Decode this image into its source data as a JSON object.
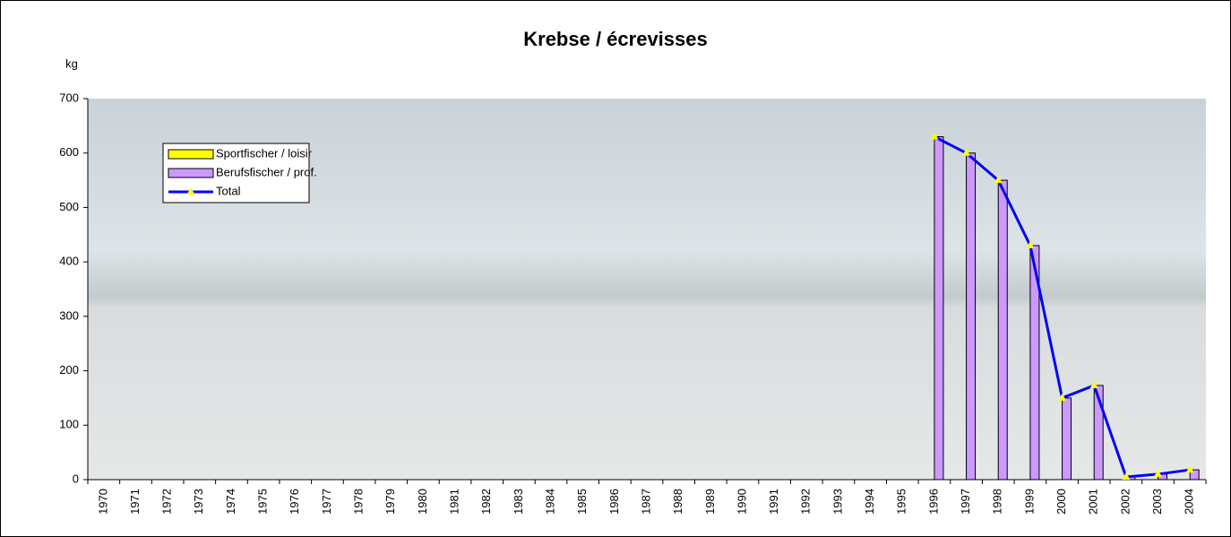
{
  "chart_data": {
    "type": "bar",
    "title": "Krebse / écrevisses",
    "y_label": "kg",
    "categories": [
      "1970",
      "1971",
      "1972",
      "1973",
      "1974",
      "1975",
      "1976",
      "1977",
      "1978",
      "1979",
      "1980",
      "1981",
      "1982",
      "1983",
      "1984",
      "1985",
      "1986",
      "1987",
      "1988",
      "1989",
      "1990",
      "1991",
      "1992",
      "1993",
      "1994",
      "1995",
      "1996",
      "1997",
      "1998",
      "1999",
      "2000",
      "2001",
      "2002",
      "2003",
      "2004"
    ],
    "series": [
      {
        "name": "Sportfischer / loisir",
        "type": "bar",
        "color": "#ffff00",
        "values": [
          null,
          null,
          null,
          null,
          null,
          null,
          null,
          null,
          null,
          null,
          null,
          null,
          null,
          null,
          null,
          null,
          null,
          null,
          null,
          null,
          null,
          null,
          null,
          null,
          null,
          null,
          0,
          0,
          0,
          0,
          0,
          0,
          0,
          0,
          0
        ]
      },
      {
        "name": "Berufsfischer / prof.",
        "type": "bar",
        "color": "#cc99ff",
        "values": [
          null,
          null,
          null,
          null,
          null,
          null,
          null,
          null,
          null,
          null,
          null,
          null,
          null,
          null,
          null,
          null,
          null,
          null,
          null,
          null,
          null,
          null,
          null,
          null,
          null,
          null,
          630,
          600,
          550,
          430,
          150,
          173,
          5,
          10,
          18
        ]
      },
      {
        "name": "Total",
        "type": "line",
        "color": "#0000ff",
        "marker_color": "#ffff00",
        "values": [
          null,
          null,
          null,
          null,
          null,
          null,
          null,
          null,
          null,
          null,
          null,
          null,
          null,
          null,
          null,
          null,
          null,
          null,
          null,
          null,
          null,
          null,
          null,
          null,
          null,
          null,
          630,
          600,
          550,
          430,
          150,
          173,
          5,
          10,
          18
        ]
      }
    ],
    "ylim": [
      0,
      700
    ],
    "yticks": [
      0,
      100,
      200,
      300,
      400,
      500,
      600,
      700
    ],
    "legend": "upper-left"
  }
}
